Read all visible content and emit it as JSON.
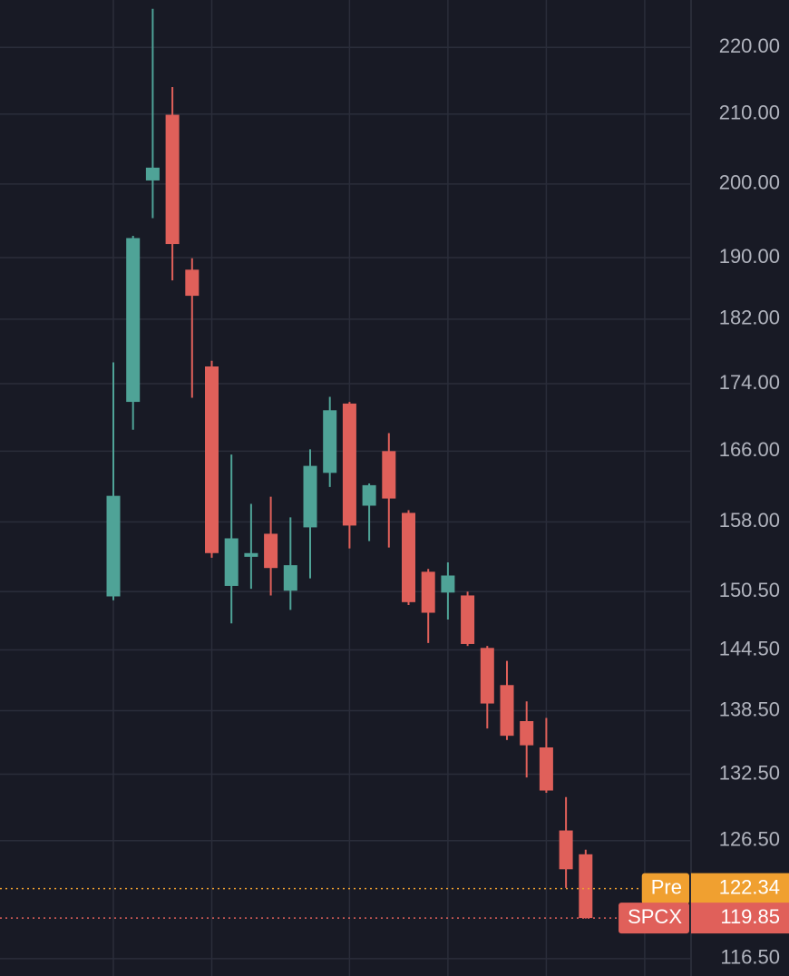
{
  "chart_data": {
    "type": "candlestick",
    "log_scale": true,
    "grid": true,
    "up_color": "#4fa397",
    "down_color": "#e0605a",
    "ylim": [
      115.1,
      227.4
    ],
    "yticks": [
      {
        "value": 220,
        "label": "220.00"
      },
      {
        "value": 210,
        "label": "210.00"
      },
      {
        "value": 200,
        "label": "200.00"
      },
      {
        "value": 190,
        "label": "190.00"
      },
      {
        "value": 182,
        "label": "182.00"
      },
      {
        "value": 174,
        "label": "174.00"
      },
      {
        "value": 166,
        "label": "166.00"
      },
      {
        "value": 158,
        "label": "158.00"
      },
      {
        "value": 150.5,
        "label": "150.50"
      },
      {
        "value": 144.5,
        "label": "144.50"
      },
      {
        "value": 138.5,
        "label": "138.50"
      },
      {
        "value": 132.5,
        "label": "132.50"
      },
      {
        "value": 126.5,
        "label": "126.50"
      },
      {
        "value": 116.5,
        "label": "116.50"
      }
    ],
    "open": [
      150.0,
      171.8,
      200.5,
      209.9,
      188.4,
      176.1,
      151.1,
      154.2,
      156.7,
      150.6,
      157.4,
      163.5,
      171.6,
      159.8,
      166.0,
      159.0,
      152.6,
      150.4,
      150.1,
      144.7,
      141.0,
      137.5,
      135.0,
      127.4,
      125.3
    ],
    "high": [
      176.6,
      192.9,
      226.0,
      214.0,
      189.9,
      176.8,
      165.6,
      160.0,
      160.8,
      158.5,
      166.2,
      172.4,
      171.8,
      162.3,
      168.1,
      159.3,
      152.9,
      153.6,
      150.5,
      144.9,
      143.4,
      139.4,
      137.8,
      130.4,
      125.7
    ],
    "low": [
      149.6,
      168.5,
      195.3,
      187.0,
      172.3,
      154.1,
      147.2,
      150.8,
      150.1,
      148.6,
      151.9,
      161.9,
      155.1,
      155.9,
      155.2,
      149.1,
      145.2,
      147.6,
      144.9,
      136.8,
      135.7,
      132.2,
      130.8,
      122.4,
      119.8
    ],
    "close": [
      160.9,
      192.6,
      202.3,
      191.8,
      185.0,
      154.6,
      156.2,
      154.6,
      153.0,
      153.3,
      164.3,
      170.8,
      157.6,
      162.1,
      160.6,
      149.4,
      148.3,
      152.2,
      145.1,
      139.2,
      136.1,
      135.2,
      131.0,
      124.0,
      119.85
    ],
    "price_lines": [
      {
        "label": "Pre",
        "value": 122.34,
        "color": "#f0a030"
      },
      {
        "label": "SPCX",
        "value": 119.85,
        "color": "#e0605a"
      }
    ]
  }
}
